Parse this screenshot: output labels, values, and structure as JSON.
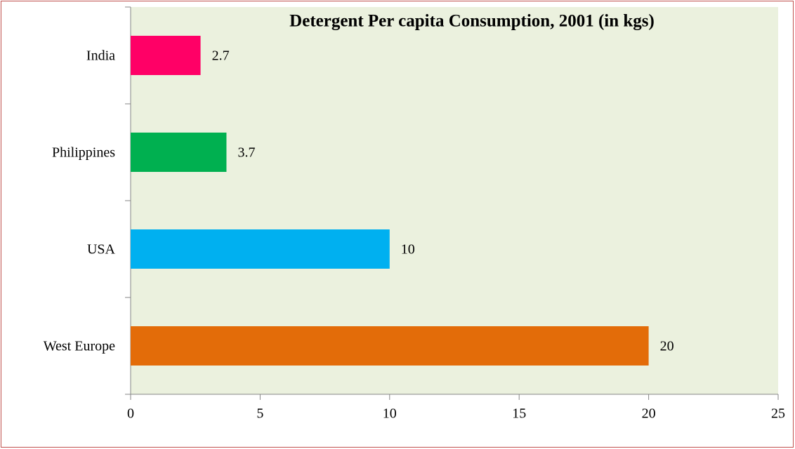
{
  "chart_data": {
    "type": "bar",
    "orientation": "horizontal",
    "title": "Detergent Per capita Consumption, 2001 (in kgs)",
    "categories": [
      "India",
      "Philippines",
      "USA",
      "West Europe"
    ],
    "values": [
      2.7,
      3.7,
      10,
      20
    ],
    "colors": [
      "#ff0066",
      "#00b050",
      "#00b0f0",
      "#e36c09"
    ],
    "xlim": [
      0,
      25
    ],
    "xticks": [
      0,
      5,
      10,
      15,
      20,
      25
    ],
    "grid": false
  }
}
